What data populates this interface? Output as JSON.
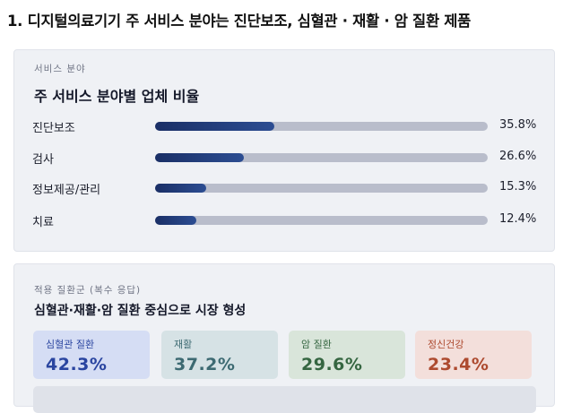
{
  "heading": "1. 디지털의료기기 주 서비스 분야는 진단보조, 심혈관 · 재활 · 암 질환 제품",
  "chart_data": {
    "type": "bar",
    "orientation": "horizontal",
    "subtitle": "서비스 분야",
    "title": "주 서비스 분야별 업체 비율",
    "categories": [
      "진단보조",
      "검사",
      "정보제공/관리",
      "치료"
    ],
    "values": [
      35.8,
      26.6,
      15.3,
      12.4
    ],
    "value_labels": [
      "35.8%",
      "26.6%",
      "15.3%",
      "12.4%"
    ],
    "xlim": [
      0,
      100
    ],
    "color": "#1f3a78"
  },
  "disease_panel": {
    "subtitle": "적용 질환군 (복수 응답)",
    "title": "심혈관·재활·암 질환 중심으로 시장 형성",
    "cards": [
      {
        "name": "심혈관 질환",
        "value": 42.3,
        "value_label": "42.3%",
        "color": "#2a45a0",
        "background": "#d5ddf4"
      },
      {
        "name": "재활",
        "value": 37.2,
        "value_label": "37.2%",
        "color": "#3d6a72",
        "background": "#d6e2e5"
      },
      {
        "name": "암 질환",
        "value": 29.6,
        "value_label": "29.6%",
        "color": "#356641",
        "background": "#d9e5da"
      },
      {
        "name": "정신건강",
        "value": 23.4,
        "value_label": "23.4%",
        "color": "#ad4a2f",
        "background": "#f3dfdb"
      }
    ]
  }
}
